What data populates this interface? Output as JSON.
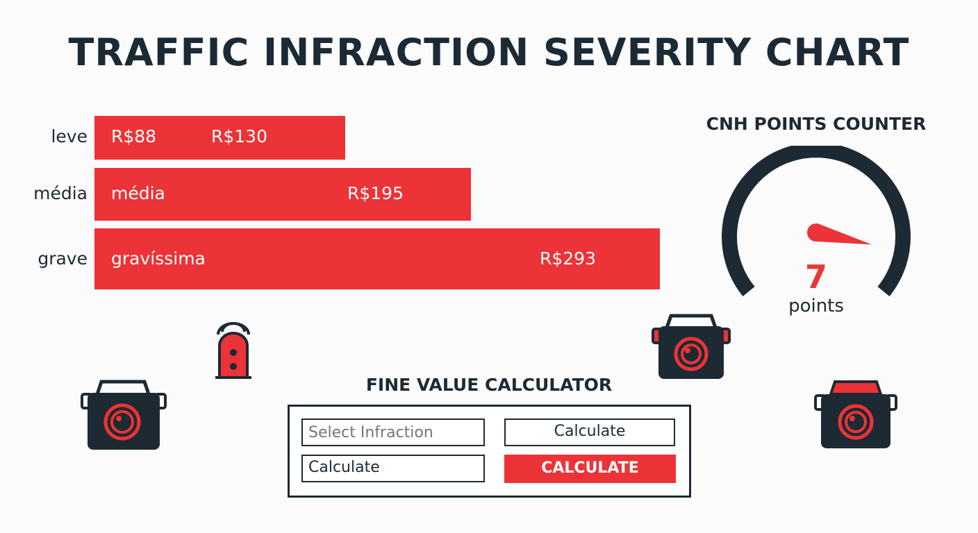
{
  "page": {
    "title": "TRAFFIC INFRACTION SEVERITY CHART"
  },
  "chart_data": {
    "type": "bar",
    "categories": [
      "leve",
      "média",
      "grave"
    ],
    "values": [
      130,
      195,
      293
    ],
    "bar_texts": [
      [
        "R$88",
        "R$130"
      ],
      [
        "média",
        "R$195"
      ],
      [
        "gravíssima",
        "R$293"
      ]
    ],
    "colors": {
      "bar": "#ec3337"
    }
  },
  "points_counter": {
    "title": "CNH POINTS COUNTER",
    "value": "7",
    "unit": "points",
    "needle_level": 0.82
  },
  "calculator": {
    "title": "FINE VALUE CALCULATOR",
    "select_placeholder": "Select Infraction",
    "calculate_label": "Calculate",
    "result_label": "Calculate",
    "action_label": "CALCULATE"
  },
  "icons": [
    "traffic-light-icon",
    "speed-camera-icon",
    "speed-camera-icon",
    "speed-camera-icon"
  ],
  "colors": {
    "accent": "#ec3337",
    "dark": "#1d2a33",
    "background": "#fbfbfb"
  }
}
